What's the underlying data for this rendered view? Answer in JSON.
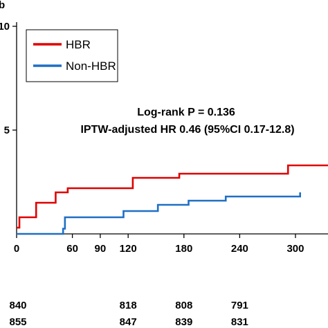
{
  "chart_data": {
    "type": "line",
    "step": true,
    "panel_letter": "b",
    "xlim": [
      0,
      335
    ],
    "ylim": [
      0,
      10
    ],
    "x_ticks": [
      0,
      60,
      90,
      120,
      180,
      240,
      300
    ],
    "y_ticks": [
      {
        "value": 5,
        "label": "5"
      },
      {
        "value": 10,
        "label": "10"
      }
    ],
    "legend": {
      "position": "top-left"
    },
    "annotation": {
      "line1": "Log-rank P = 0.136",
      "line2": "IPTW-adjusted HR 0.46 (95%CI  0.17-12.8)"
    },
    "series": [
      {
        "name": "HBR",
        "color": "#e00000",
        "x": [
          0,
          3,
          6,
          21,
          31,
          42,
          55,
          75,
          125,
          175,
          292,
          335
        ],
        "y": [
          0.3,
          0.8,
          0.8,
          1.5,
          1.5,
          2.0,
          2.2,
          2.2,
          2.7,
          2.9,
          3.3,
          3.3
        ]
      },
      {
        "name": "Non-HBR",
        "color": "#1f6fc4",
        "x": [
          0,
          50,
          52,
          80,
          115,
          152,
          185,
          225,
          305
        ],
        "y": [
          0.0,
          0.25,
          0.8,
          0.8,
          1.1,
          1.4,
          1.6,
          1.8,
          2.0
        ]
      }
    ],
    "risk_table": {
      "columns_x": [
        0,
        120,
        180,
        240
      ],
      "rows": [
        [
          "840",
          "818",
          "808",
          "791"
        ],
        [
          "855",
          "847",
          "839",
          "831"
        ]
      ]
    }
  }
}
